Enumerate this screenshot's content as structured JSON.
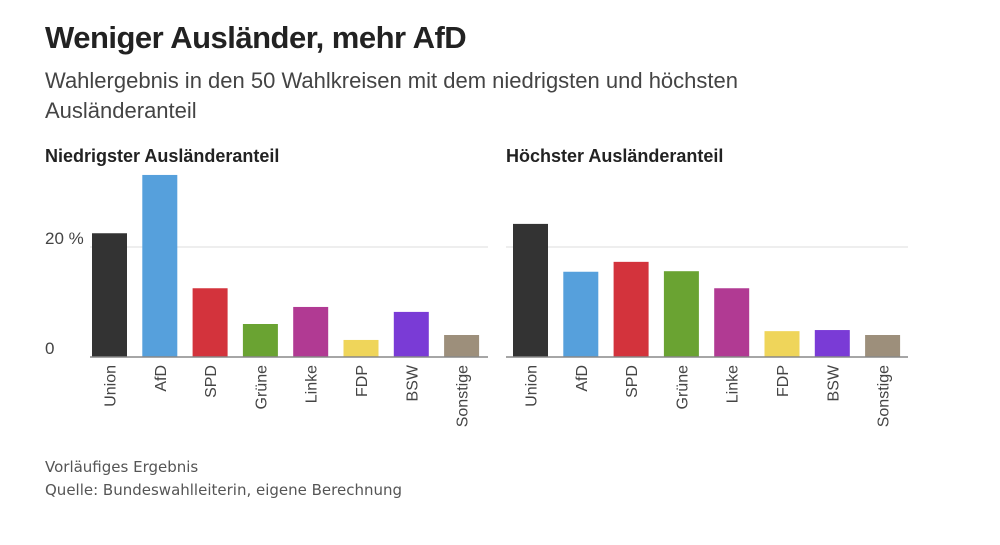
{
  "header": {
    "title": "Weniger Ausländer, mehr AfD",
    "subtitle": "Wahlergebnis in den 50 Wahlkreisen mit dem niedrigsten und höchsten Ausländeranteil"
  },
  "footer": {
    "note": "Vorläufiges Ergebnis",
    "source": "Quelle: Bundeswahlleiterin, eigene Berechnung"
  },
  "chart_data": [
    {
      "type": "bar",
      "title": "Niedrigster Ausländeranteil",
      "categories": [
        "Union",
        "AfD",
        "SPD",
        "Grüne",
        "Linke",
        "FDP",
        "BSW",
        "Sonstige"
      ],
      "values": [
        22.5,
        33.1,
        12.5,
        6.0,
        9.1,
        3.1,
        8.2,
        4.0
      ],
      "colors": [
        "#333333",
        "#56a0dc",
        "#d3333c",
        "#6aa332",
        "#b13a93",
        "#efd55a",
        "#7a3bd6",
        "#9d8f7b"
      ],
      "yticks": [
        {
          "value": 0,
          "label": "0"
        },
        {
          "value": 20,
          "label": "20 %"
        }
      ],
      "ylim": [
        0,
        34
      ],
      "xlabel": "",
      "ylabel": "",
      "grid": true
    },
    {
      "type": "bar",
      "title": "Höchster Ausländeranteil",
      "categories": [
        "Union",
        "AfD",
        "SPD",
        "Grüne",
        "Linke",
        "FDP",
        "BSW",
        "Sonstige"
      ],
      "values": [
        24.2,
        15.5,
        17.3,
        15.6,
        12.5,
        4.7,
        4.9,
        4.0
      ],
      "colors": [
        "#333333",
        "#56a0dc",
        "#d3333c",
        "#6aa332",
        "#b13a93",
        "#efd55a",
        "#7a3bd6",
        "#9d8f7b"
      ],
      "yticks": [
        {
          "value": 0,
          "label": ""
        },
        {
          "value": 20,
          "label": ""
        }
      ],
      "ylim": [
        0,
        34
      ],
      "xlabel": "",
      "ylabel": "",
      "grid": true
    }
  ]
}
